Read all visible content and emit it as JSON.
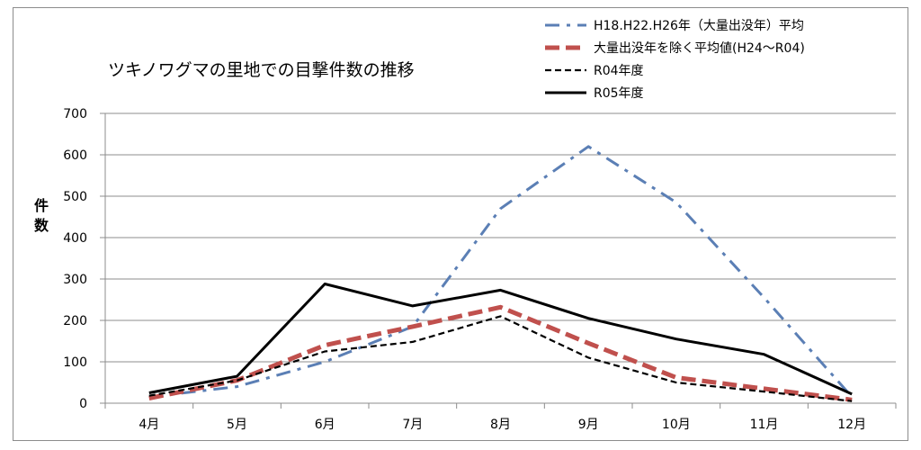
{
  "chart_data": {
    "type": "line",
    "title": "ツキノワグマの里地での目撃件数の推移",
    "ylabel": "件数",
    "xlabel": "",
    "categories": [
      "4月",
      "5月",
      "6月",
      "7月",
      "8月",
      "9月",
      "10月",
      "11月",
      "12月"
    ],
    "ylim": [
      0,
      700
    ],
    "yticks": [
      0,
      100,
      200,
      300,
      400,
      500,
      600,
      700
    ],
    "grid": true,
    "legend_position": "top-right",
    "series": [
      {
        "name": "H18.H22.H26年（大量出没年）平均",
        "values": [
          15,
          40,
          100,
          185,
          470,
          620,
          485,
          255,
          15
        ],
        "color": "#5b7fb5",
        "style": "dash-dot"
      },
      {
        "name": "大量出没年を除く平均値(H24～R04)",
        "values": [
          12,
          55,
          140,
          185,
          232,
          145,
          62,
          35,
          8
        ],
        "color": "#c0504d",
        "style": "dashed-thick"
      },
      {
        "name": "R04年度",
        "values": [
          18,
          55,
          125,
          148,
          210,
          110,
          50,
          28,
          5
        ],
        "color": "#000000",
        "style": "dashed-thin"
      },
      {
        "name": "R05年度",
        "values": [
          25,
          65,
          288,
          235,
          273,
          205,
          155,
          118,
          22
        ],
        "color": "#000000",
        "style": "solid"
      }
    ]
  }
}
